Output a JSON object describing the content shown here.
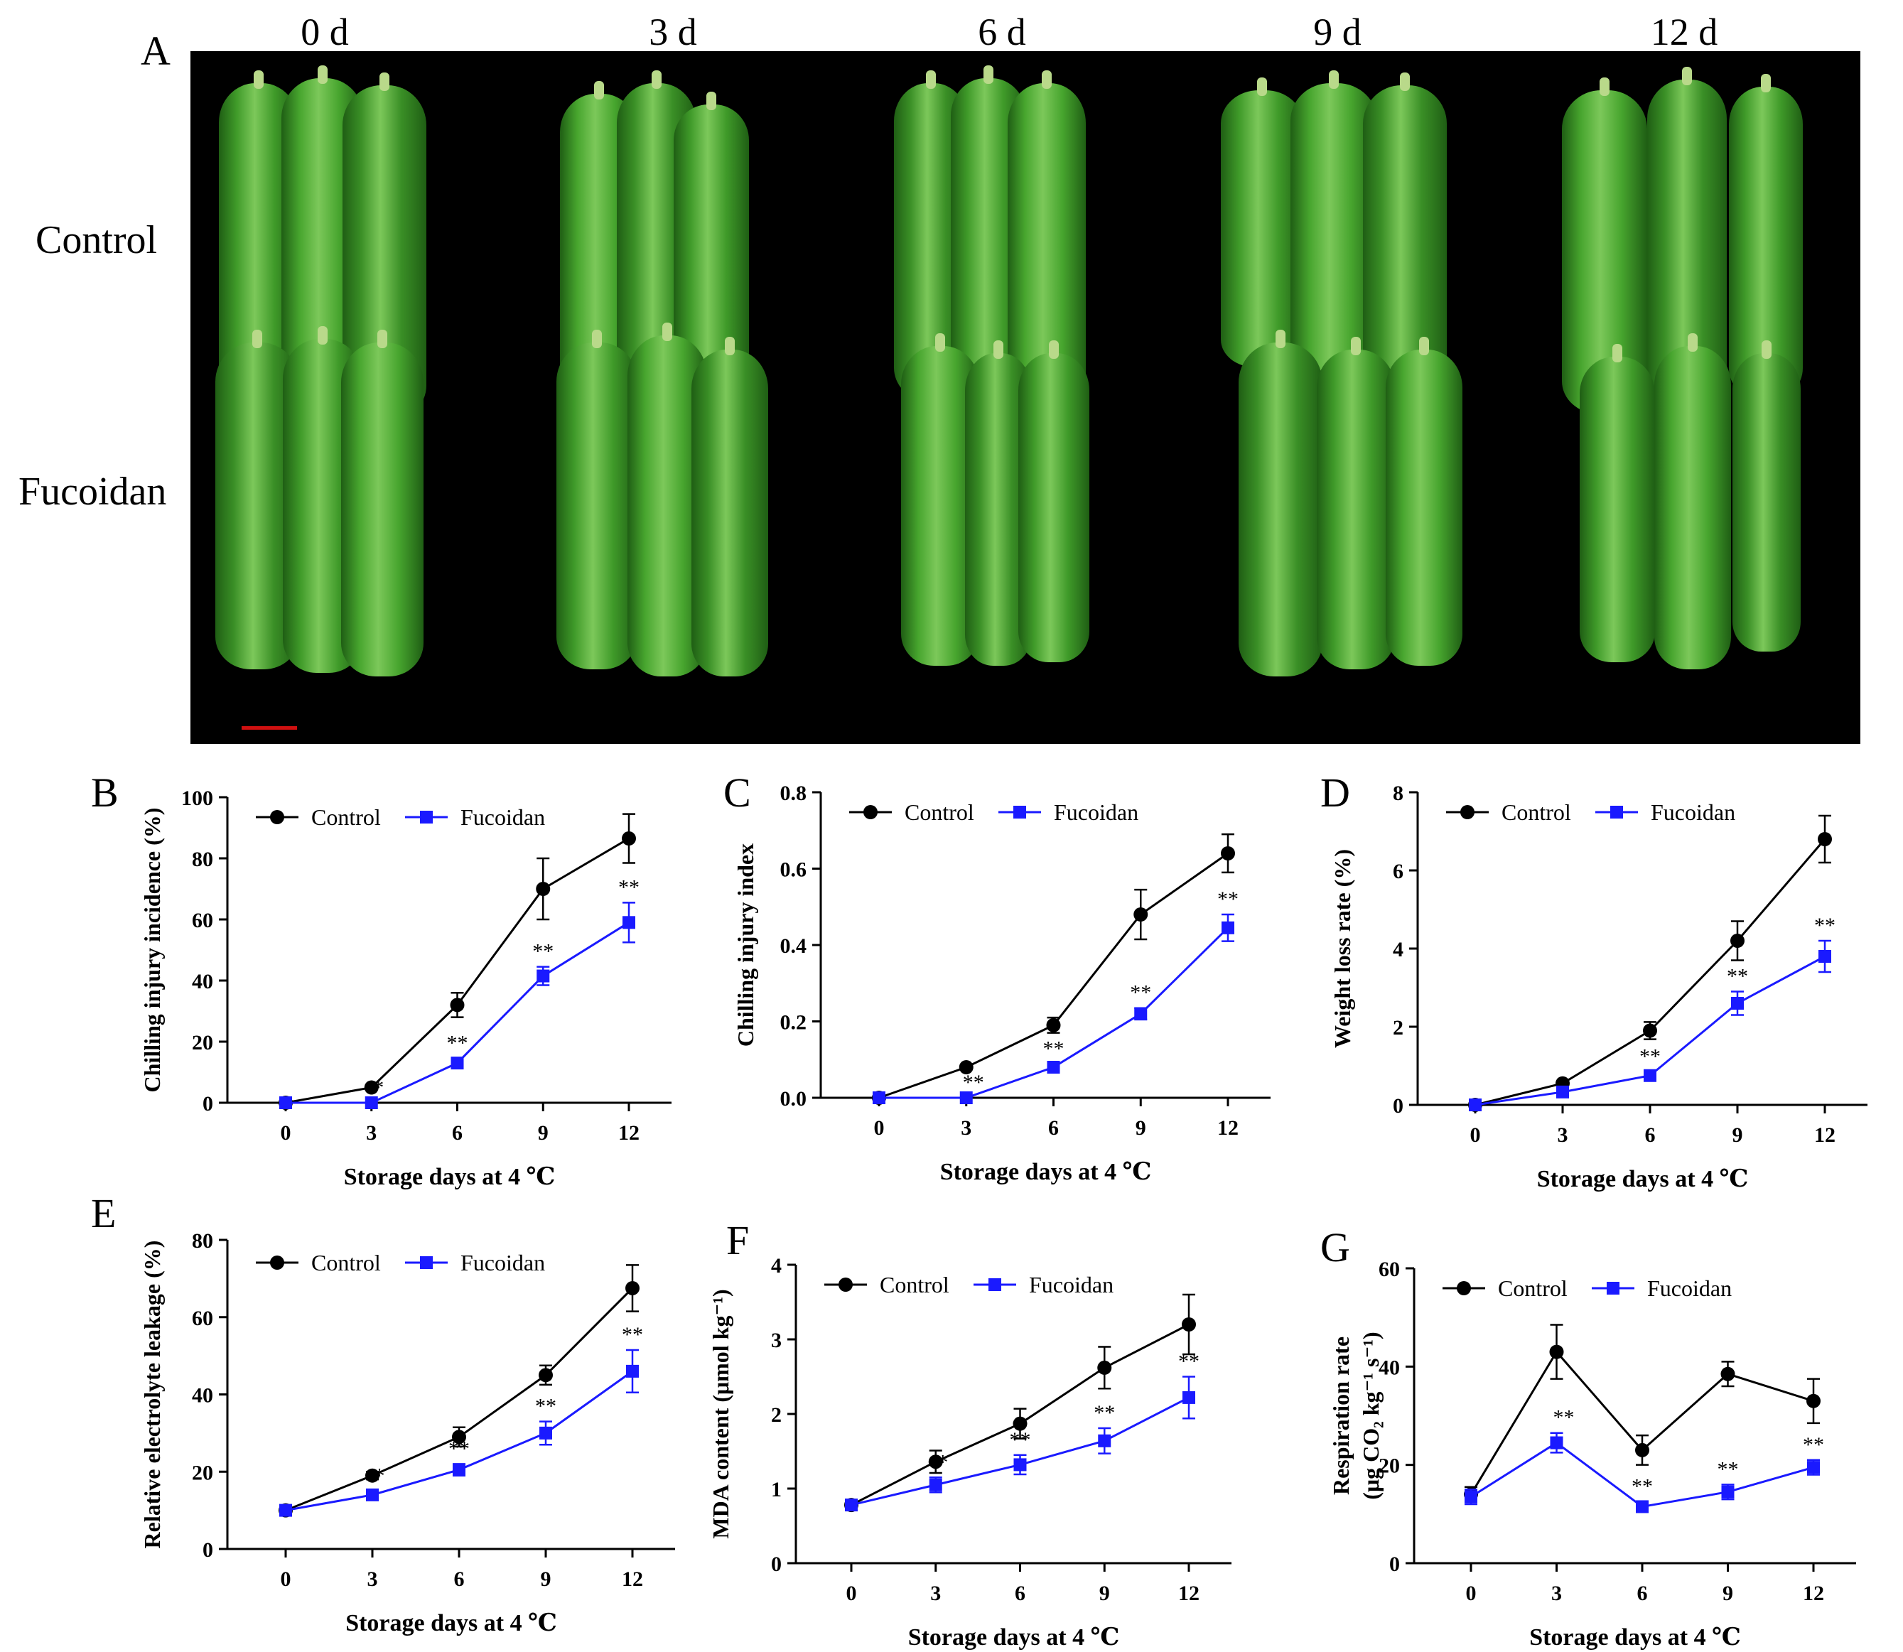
{
  "photo_panel": {
    "letter": "A",
    "day_labels": [
      "0 d",
      "3 d",
      "6 d",
      "9 d",
      "12 d"
    ],
    "row_labels": [
      "Control",
      "Fucoidan"
    ]
  },
  "colors": {
    "control": "#000000",
    "fucoidan": "#1a1aff",
    "photo_bg": "#000000",
    "scale_bar": "#d01010"
  },
  "chart_data": [
    {
      "panel": "B",
      "type": "line",
      "x": [
        0,
        3,
        6,
        9,
        12
      ],
      "xticks": [
        "0",
        "3",
        "6",
        "9",
        "12"
      ],
      "xlabel": "Storage days at 4 ℃",
      "ylabel": "Chilling injury incidence (%)",
      "ylim": [
        0,
        100
      ],
      "yticks": [
        "0",
        "20",
        "40",
        "60",
        "80",
        "100"
      ],
      "legend": [
        "Control",
        "Fucoidan"
      ],
      "series": [
        {
          "name": "Control",
          "values": [
            0,
            5,
            32,
            70,
            86.5
          ],
          "err": [
            0,
            0,
            4,
            10,
            8
          ]
        },
        {
          "name": "Fucoidan",
          "values": [
            0,
            0,
            13,
            41.5,
            59
          ],
          "err": [
            0,
            0,
            1.5,
            3,
            6.5
          ]
        }
      ],
      "significance": [
        "",
        "*",
        "**",
        "**",
        "**"
      ]
    },
    {
      "panel": "C",
      "type": "line",
      "x": [
        0,
        3,
        6,
        9,
        12
      ],
      "xticks": [
        "0",
        "3",
        "6",
        "9",
        "12"
      ],
      "xlabel": "Storage days at 4 ℃",
      "ylabel": "Chilling injury index",
      "ylim": [
        0,
        0.8
      ],
      "yticks": [
        "0.0",
        "0.2",
        "0.4",
        "0.6",
        "0.8"
      ],
      "legend": [
        "Control",
        "Fucoidan"
      ],
      "series": [
        {
          "name": "Control",
          "values": [
            0,
            0.08,
            0.19,
            0.48,
            0.64
          ],
          "err": [
            0,
            0.005,
            0.02,
            0.065,
            0.05
          ]
        },
        {
          "name": "Fucoidan",
          "values": [
            0,
            0,
            0.08,
            0.22,
            0.445
          ],
          "err": [
            0,
            0,
            0.008,
            0.015,
            0.035
          ]
        }
      ],
      "significance": [
        "",
        "**",
        "**",
        "**",
        "**"
      ]
    },
    {
      "panel": "D",
      "type": "line",
      "x": [
        0,
        3,
        6,
        9,
        12
      ],
      "xticks": [
        "0",
        "3",
        "6",
        "9",
        "12"
      ],
      "xlabel": "Storage days at 4 ℃",
      "ylabel": "Weight loss rate (%)",
      "ylim": [
        0,
        8
      ],
      "yticks": [
        "0",
        "2",
        "4",
        "6",
        "8"
      ],
      "legend": [
        "Control",
        "Fucoidan"
      ],
      "series": [
        {
          "name": "Control",
          "values": [
            0,
            0.55,
            1.9,
            4.2,
            6.8
          ],
          "err": [
            0,
            0.06,
            0.22,
            0.5,
            0.6
          ]
        },
        {
          "name": "Fucoidan",
          "values": [
            0,
            0.33,
            0.75,
            2.6,
            3.8
          ],
          "err": [
            0,
            0.04,
            0.1,
            0.3,
            0.4
          ]
        }
      ],
      "significance": [
        "",
        "",
        "**",
        "**",
        "**"
      ]
    },
    {
      "panel": "E",
      "type": "line",
      "x": [
        0,
        3,
        6,
        9,
        12
      ],
      "xticks": [
        "0",
        "3",
        "6",
        "9",
        "12"
      ],
      "xlabel": "Storage days at 4 ℃",
      "ylabel": "Relative electrolyte leakage (%)",
      "ylim": [
        0,
        80
      ],
      "yticks": [
        "0",
        "20",
        "40",
        "60",
        "80"
      ],
      "legend": [
        "Control",
        "Fucoidan"
      ],
      "series": [
        {
          "name": "Control",
          "values": [
            10,
            19,
            29,
            45,
            67.5
          ],
          "err": [
            0.8,
            1,
            2.5,
            2.5,
            6
          ]
        },
        {
          "name": "Fucoidan",
          "values": [
            10,
            14,
            20.5,
            30,
            46
          ],
          "err": [
            0.8,
            1,
            1.5,
            3,
            5.5
          ]
        }
      ],
      "significance": [
        "",
        "*",
        "**",
        "**",
        "**"
      ]
    },
    {
      "panel": "F",
      "type": "line",
      "x": [
        0,
        3,
        6,
        9,
        12
      ],
      "xticks": [
        "0",
        "3",
        "6",
        "9",
        "12"
      ],
      "xlabel": "Storage days at 4 ℃",
      "ylabel": "MDA content (μmol kg⁻¹)",
      "ylim": [
        0,
        4
      ],
      "yticks": [
        "0",
        "1",
        "2",
        "3",
        "4"
      ],
      "legend": [
        "Control",
        "Fucoidan"
      ],
      "series": [
        {
          "name": "Control",
          "values": [
            0.78,
            1.36,
            1.87,
            2.62,
            3.2
          ],
          "err": [
            0.05,
            0.15,
            0.2,
            0.28,
            0.4
          ]
        },
        {
          "name": "Fucoidan",
          "values": [
            0.78,
            1.05,
            1.32,
            1.64,
            2.22
          ],
          "err": [
            0.05,
            0.1,
            0.13,
            0.17,
            0.28
          ]
        }
      ],
      "significance": [
        "",
        "*",
        "**",
        "**",
        "**"
      ]
    },
    {
      "panel": "G",
      "type": "line",
      "x": [
        0,
        3,
        6,
        9,
        12
      ],
      "xticks": [
        "0",
        "3",
        "6",
        "9",
        "12"
      ],
      "xlabel": "Storage days at 4 ℃",
      "ylabel": "Respiration rate (μg CO₂ kg⁻¹ s⁻¹)",
      "ylabel_lines": [
        "Respiration rate",
        "(μg CO₂ kg⁻¹ s⁻¹)"
      ],
      "ylim": [
        0,
        60
      ],
      "yticks": [
        "0",
        "20",
        "40",
        "60"
      ],
      "legend": [
        "Control",
        "Fucoidan"
      ],
      "series": [
        {
          "name": "Control",
          "values": [
            14,
            43,
            23,
            38.5,
            33
          ],
          "err": [
            1.5,
            5.5,
            3,
            2.5,
            4.5
          ]
        },
        {
          "name": "Fucoidan",
          "values": [
            13.5,
            24.5,
            11.5,
            14.5,
            19.5
          ],
          "err": [
            1.5,
            2,
            1,
            1.5,
            1.5
          ]
        }
      ],
      "significance": [
        "",
        "**",
        "**",
        "**",
        "**"
      ]
    }
  ]
}
